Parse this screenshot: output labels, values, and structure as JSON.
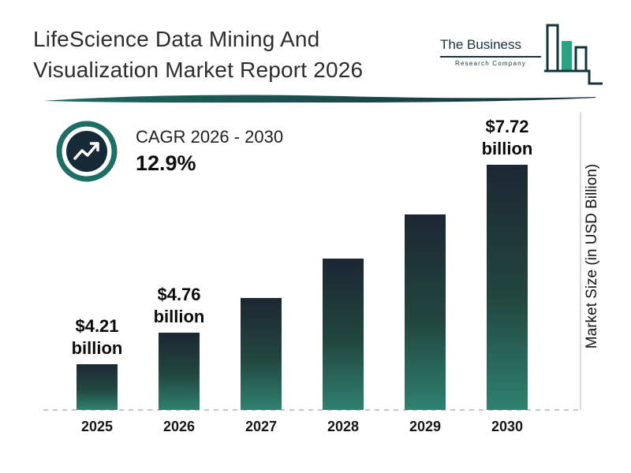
{
  "header": {
    "title_line1": "LifeScience Data Mining And",
    "title_line2": "Visualization Market Report 2026",
    "logo": {
      "name": "The Business",
      "tagline": "Research Company"
    }
  },
  "cagr": {
    "label": "CAGR 2026 - 2030",
    "value": "12.9%"
  },
  "chart_data": {
    "type": "bar",
    "title": "LifeScience Data Mining And Visualization Market Report 2026",
    "categories": [
      "2025",
      "2026",
      "2027",
      "2028",
      "2029",
      "2030"
    ],
    "values": [
      4.21,
      4.76,
      5.37,
      6.06,
      6.84,
      7.72
    ],
    "value_labels": [
      {
        "amount": "$4.21",
        "unit": "billion"
      },
      {
        "amount": "$4.76",
        "unit": "billion"
      },
      null,
      null,
      null,
      {
        "amount": "$7.72",
        "unit": "billion"
      }
    ],
    "ylabel": "Market Size (in USD Billion)",
    "ylim": [
      0,
      8
    ],
    "legend": "none",
    "grid": "dashed-baseline-only"
  },
  "colors": {
    "accent_teal": "#1d6e63",
    "dark_navy": "#152b38",
    "logo_green": "#2aa284",
    "bar_gradient_top": "#1c2733",
    "bar_gradient_bottom": "#2f8170",
    "baseline_gray": "#c3c3c3"
  },
  "icons": {
    "growth_trend": "zigzag-arrow-up-right-in-circle",
    "logo_mark": "three-bar-chart"
  }
}
